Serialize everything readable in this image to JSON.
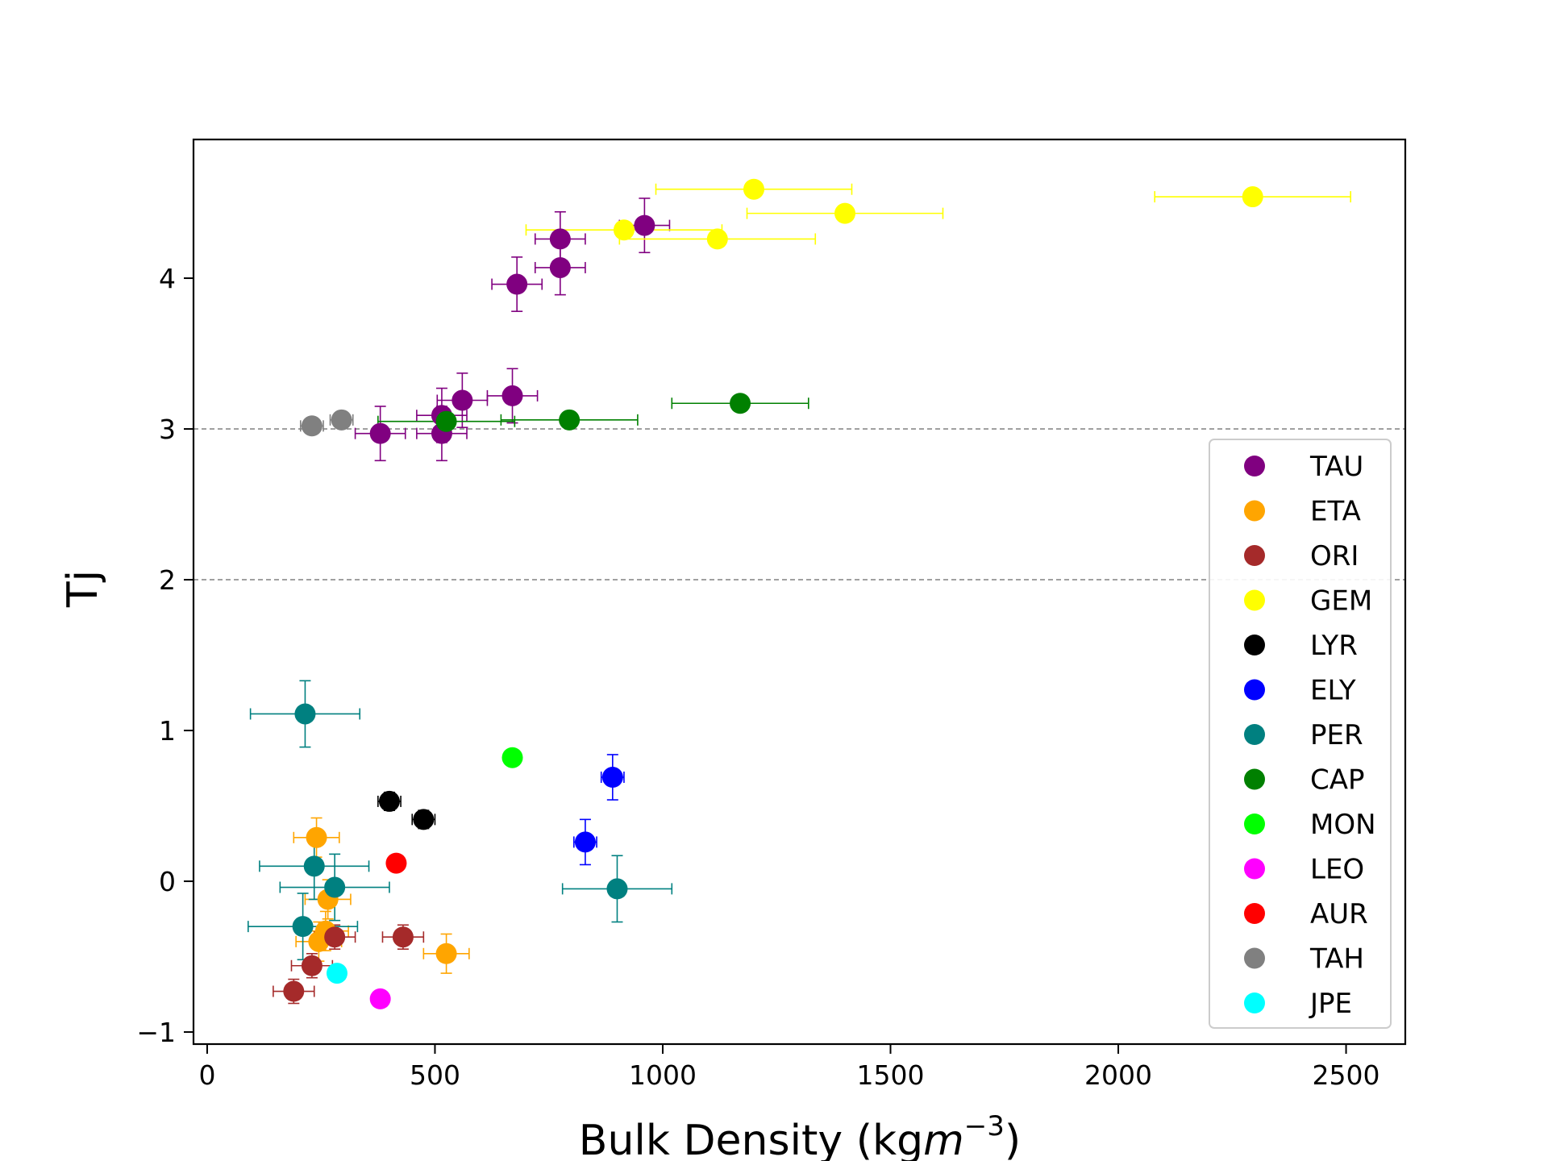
{
  "chart_data": {
    "type": "scatter",
    "title": "",
    "xlabel_main": "Bulk Density (kg",
    "xlabel_var": "m",
    "xlabel_exp": "−3",
    "xlabel_close": ")",
    "ylabel": "Tj",
    "xlim": [
      -30,
      2630
    ],
    "ylim": [
      -1.08,
      4.92
    ],
    "xticks": [
      0,
      500,
      1000,
      1500,
      2000,
      2500
    ],
    "xtick_labels": [
      "0",
      "500",
      "1000",
      "1500",
      "2000",
      "2500"
    ],
    "yticks": [
      -1,
      0,
      1,
      2,
      3,
      4
    ],
    "ytick_labels": [
      "−1",
      "0",
      "1",
      "2",
      "3",
      "4"
    ],
    "reference_lines": [
      2,
      3
    ],
    "legend_position": "lower-right",
    "series": [
      {
        "name": "TAU",
        "color": "#800080",
        "points": [
          {
            "x": 680,
            "y": 3.96,
            "xerr": 55,
            "yerr": 0.18
          },
          {
            "x": 775,
            "y": 4.26,
            "xerr": 55,
            "yerr": 0.18
          },
          {
            "x": 775,
            "y": 4.07,
            "xerr": 55,
            "yerr": 0.18
          },
          {
            "x": 960,
            "y": 4.35,
            "xerr": 55,
            "yerr": 0.18
          },
          {
            "x": 380,
            "y": 2.97,
            "xerr": 55,
            "yerr": 0.18
          },
          {
            "x": 515,
            "y": 3.09,
            "xerr": 55,
            "yerr": 0.18
          },
          {
            "x": 515,
            "y": 2.97,
            "xerr": 55,
            "yerr": 0.18
          },
          {
            "x": 560,
            "y": 3.19,
            "xerr": 55,
            "yerr": 0.18
          },
          {
            "x": 670,
            "y": 3.22,
            "xerr": 55,
            "yerr": 0.18
          }
        ]
      },
      {
        "name": "ETA",
        "color": "#FFA500",
        "points": [
          {
            "x": 240,
            "y": 0.29,
            "xerr": 50,
            "yerr": 0.13
          },
          {
            "x": 265,
            "y": -0.12,
            "xerr": 50,
            "yerr": 0.13
          },
          {
            "x": 245,
            "y": -0.4,
            "xerr": 50,
            "yerr": 0.13
          },
          {
            "x": 260,
            "y": -0.33,
            "xerr": 50,
            "yerr": 0.13
          },
          {
            "x": 525,
            "y": -0.48,
            "xerr": 50,
            "yerr": 0.13
          }
        ]
      },
      {
        "name": "ORI",
        "color": "#A52A2A",
        "points": [
          {
            "x": 190,
            "y": -0.73,
            "xerr": 45,
            "yerr": 0.08
          },
          {
            "x": 230,
            "y": -0.56,
            "xerr": 45,
            "yerr": 0.08
          },
          {
            "x": 280,
            "y": -0.37,
            "xerr": 45,
            "yerr": 0.08
          },
          {
            "x": 430,
            "y": -0.37,
            "xerr": 45,
            "yerr": 0.08
          }
        ]
      },
      {
        "name": "GEM",
        "color": "#FFFF00",
        "points": [
          {
            "x": 915,
            "y": 4.32,
            "xerr": 215,
            "yerr": 0.05
          },
          {
            "x": 1120,
            "y": 4.26,
            "xerr": 215,
            "yerr": 0.05
          },
          {
            "x": 1200,
            "y": 4.59,
            "xerr": 215,
            "yerr": 0.05
          },
          {
            "x": 1400,
            "y": 4.43,
            "xerr": 215,
            "yerr": 0.05
          },
          {
            "x": 2295,
            "y": 4.54,
            "xerr": 215,
            "yerr": 0.05
          }
        ]
      },
      {
        "name": "LYR",
        "color": "#000000",
        "points": [
          {
            "x": 400,
            "y": 0.53,
            "xerr": 25,
            "yerr": 0.06
          },
          {
            "x": 475,
            "y": 0.41,
            "xerr": 25,
            "yerr": 0.06
          }
        ]
      },
      {
        "name": "ELY",
        "color": "#0000FF",
        "points": [
          {
            "x": 890,
            "y": 0.69,
            "xerr": 25,
            "yerr": 0.15
          },
          {
            "x": 830,
            "y": 0.26,
            "xerr": 25,
            "yerr": 0.15
          }
        ]
      },
      {
        "name": "PER",
        "color": "#008080",
        "points": [
          {
            "x": 215,
            "y": 1.11,
            "xerr": 120,
            "yerr": 0.22
          },
          {
            "x": 235,
            "y": 0.1,
            "xerr": 120,
            "yerr": 0.22
          },
          {
            "x": 280,
            "y": -0.04,
            "xerr": 120,
            "yerr": 0.22
          },
          {
            "x": 210,
            "y": -0.3,
            "xerr": 120,
            "yerr": 0.22
          },
          {
            "x": 900,
            "y": -0.05,
            "xerr": 120,
            "yerr": 0.22
          }
        ]
      },
      {
        "name": "CAP",
        "color": "#008000",
        "points": [
          {
            "x": 525,
            "y": 3.05,
            "xerr": 150,
            "yerr": 0.02
          },
          {
            "x": 795,
            "y": 3.06,
            "xerr": 150,
            "yerr": 0.02
          },
          {
            "x": 1170,
            "y": 3.17,
            "xerr": 150,
            "yerr": 0.02
          }
        ]
      },
      {
        "name": "MON",
        "color": "#00FF00",
        "points": [
          {
            "x": 670,
            "y": 0.82,
            "xerr": 12,
            "yerr": 0.04
          }
        ]
      },
      {
        "name": "LEO",
        "color": "#FF00FF",
        "points": [
          {
            "x": 380,
            "y": -0.78,
            "xerr": 15,
            "yerr": 0.04
          }
        ]
      },
      {
        "name": "AUR",
        "color": "#FF0000",
        "points": [
          {
            "x": 415,
            "y": 0.12,
            "xerr": 15,
            "yerr": 0.05
          }
        ]
      },
      {
        "name": "TAH",
        "color": "#808080",
        "points": [
          {
            "x": 230,
            "y": 3.02,
            "xerr": 25,
            "yerr": 0.03
          },
          {
            "x": 295,
            "y": 3.06,
            "xerr": 25,
            "yerr": 0.03
          }
        ]
      },
      {
        "name": "JPE",
        "color": "#00FFFF",
        "points": [
          {
            "x": 285,
            "y": -0.61,
            "xerr": 15,
            "yerr": 0.03
          }
        ]
      }
    ]
  }
}
